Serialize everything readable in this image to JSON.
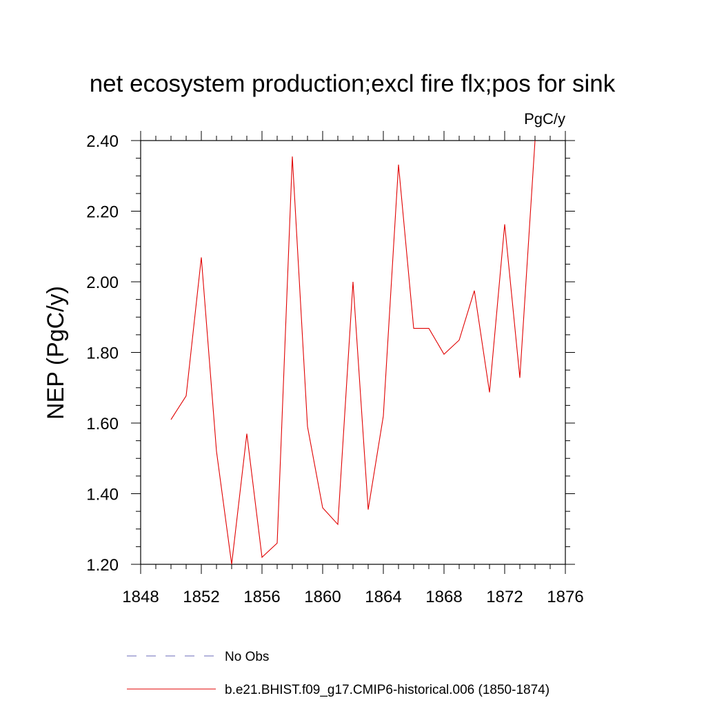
{
  "chart_data": {
    "type": "line",
    "title": "net ecosystem production;excl fire flx;pos for sink",
    "units": "PgC/y",
    "ylabel": "NEP  (PgC/y)",
    "xlabel": "",
    "xlim": [
      1848,
      1876
    ],
    "ylim": [
      1.2,
      2.4
    ],
    "x_ticks": [
      "1848",
      "1852",
      "1856",
      "1860",
      "1864",
      "1868",
      "1872",
      "1876"
    ],
    "y_ticks": [
      "1.20",
      "1.40",
      "1.60",
      "1.80",
      "2.00",
      "2.20",
      "2.40"
    ],
    "series": [
      {
        "name": "b.e21.BHIST.f09_g17.CMIP6-historical.006 (1850-1874)",
        "color": "#e00000",
        "style": "solid",
        "x": [
          1850,
          1851,
          1852,
          1853,
          1854,
          1855,
          1856,
          1857,
          1858,
          1859,
          1860,
          1861,
          1862,
          1863,
          1864,
          1865,
          1866,
          1867,
          1868,
          1869,
          1870,
          1871,
          1872,
          1873,
          1874
        ],
        "y": [
          1.61,
          1.677,
          2.069,
          1.52,
          1.2,
          1.57,
          1.22,
          1.26,
          2.355,
          1.59,
          1.36,
          1.313,
          2.0,
          1.355,
          1.62,
          2.332,
          1.868,
          1.868,
          1.795,
          1.835,
          1.975,
          1.687,
          2.163,
          1.728,
          2.4
        ]
      }
    ],
    "legend": [
      {
        "label": "No Obs",
        "color": "#6a6ab8",
        "style": "dashed"
      },
      {
        "label": "b.e21.BHIST.f09_g17.CMIP6-historical.006 (1850-1874)",
        "color": "#e00000",
        "style": "solid"
      }
    ]
  }
}
